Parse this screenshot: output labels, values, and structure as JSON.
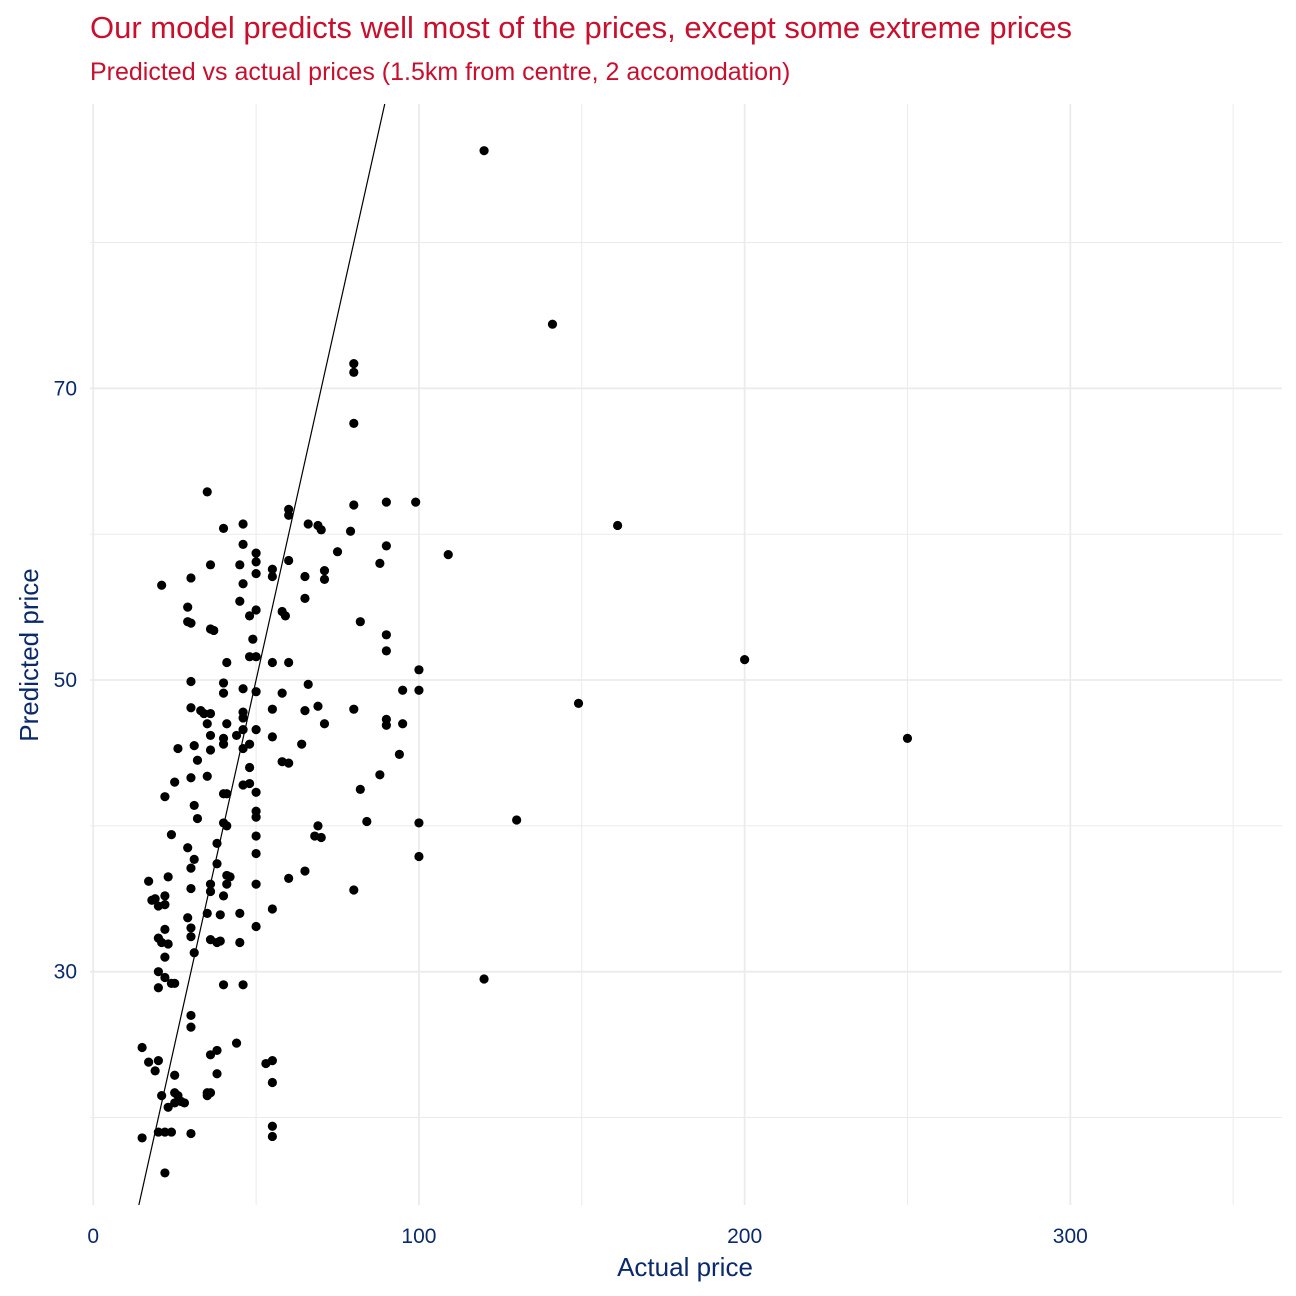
{
  "chart_data": {
    "type": "scatter",
    "title": "Our model predicts well most of the prices, except some extreme prices",
    "subtitle": "Predicted vs actual prices (1.5km from centre, 2 accomodation)",
    "xlabel": "Actual price",
    "ylabel": "Predicted price",
    "xlim": [
      -1,
      365
    ],
    "ylim": [
      14,
      89.5
    ],
    "xticks": [
      0,
      100,
      200,
      300
    ],
    "yticks": [
      30,
      50,
      70
    ],
    "x_minor": [
      50,
      150,
      250,
      350
    ],
    "y_minor": [
      20,
      40,
      60,
      80
    ],
    "grid": true,
    "reference_line": {
      "slope": 1,
      "intercept": 0
    },
    "colors": {
      "title": "#c8102e",
      "axis_text": "#0b2a6b",
      "points": "#000000",
      "grid": "#ebebeb"
    },
    "points": [
      [
        120,
        86.3
      ],
      [
        141,
        74.4
      ],
      [
        161,
        60.6
      ],
      [
        200,
        51.4
      ],
      [
        250,
        46.0
      ],
      [
        149,
        48.4
      ],
      [
        130,
        40.4
      ],
      [
        120,
        29.5
      ],
      [
        109,
        58.6
      ],
      [
        99,
        62.2
      ],
      [
        100,
        50.7
      ],
      [
        100,
        49.3
      ],
      [
        100,
        40.2
      ],
      [
        100,
        37.9
      ],
      [
        90,
        62.2
      ],
      [
        88,
        58.0
      ],
      [
        90,
        59.2
      ],
      [
        90,
        53.1
      ],
      [
        90,
        52.0
      ],
      [
        90,
        47.3
      ],
      [
        90,
        46.9
      ],
      [
        95,
        49.3
      ],
      [
        95,
        47.0
      ],
      [
        94,
        44.9
      ],
      [
        88,
        43.5
      ],
      [
        80,
        71.7
      ],
      [
        80,
        71.1
      ],
      [
        80,
        67.6
      ],
      [
        80,
        62.0
      ],
      [
        79,
        60.2
      ],
      [
        82,
        54.0
      ],
      [
        80,
        48.0
      ],
      [
        82,
        42.5
      ],
      [
        84,
        40.3
      ],
      [
        80,
        35.6
      ],
      [
        75,
        58.8
      ],
      [
        69,
        60.6
      ],
      [
        70,
        60.3
      ],
      [
        71,
        57.5
      ],
      [
        71,
        56.9
      ],
      [
        71,
        47.0
      ],
      [
        69,
        48.2
      ],
      [
        69,
        40.0
      ],
      [
        70,
        39.2
      ],
      [
        68,
        39.3
      ],
      [
        66,
        60.7
      ],
      [
        65,
        57.1
      ],
      [
        65,
        55.6
      ],
      [
        66,
        49.7
      ],
      [
        65,
        47.9
      ],
      [
        64,
        45.6
      ],
      [
        65,
        36.9
      ],
      [
        60,
        61.7
      ],
      [
        60,
        61.3
      ],
      [
        60,
        58.2
      ],
      [
        58,
        54.7
      ],
      [
        59,
        54.4
      ],
      [
        60,
        51.2
      ],
      [
        58,
        49.1
      ],
      [
        58,
        44.4
      ],
      [
        60,
        44.3
      ],
      [
        60,
        36.4
      ],
      [
        55,
        57.6
      ],
      [
        55,
        57.1
      ],
      [
        55,
        51.2
      ],
      [
        55,
        48.0
      ],
      [
        55,
        46.1
      ],
      [
        55,
        34.3
      ],
      [
        55,
        23.9
      ],
      [
        53,
        23.7
      ],
      [
        55,
        22.4
      ],
      [
        55,
        19.4
      ],
      [
        55,
        18.7
      ],
      [
        50,
        58.7
      ],
      [
        50,
        58.1
      ],
      [
        50,
        57.3
      ],
      [
        50,
        54.8
      ],
      [
        50,
        51.6
      ],
      [
        49,
        52.8
      ],
      [
        48,
        51.6
      ],
      [
        48,
        54.4
      ],
      [
        50,
        49.2
      ],
      [
        50,
        46.6
      ],
      [
        48,
        45.6
      ],
      [
        48,
        44.0
      ],
      [
        48,
        42.9
      ],
      [
        50,
        42.3
      ],
      [
        50,
        41.0
      ],
      [
        50,
        40.6
      ],
      [
        50,
        39.3
      ],
      [
        50,
        38.1
      ],
      [
        50,
        36.0
      ],
      [
        50,
        33.1
      ],
      [
        46,
        60.7
      ],
      [
        46,
        59.3
      ],
      [
        45,
        57.9
      ],
      [
        46,
        56.6
      ],
      [
        45,
        55.4
      ],
      [
        46,
        49.4
      ],
      [
        46,
        47.4
      ],
      [
        46,
        47.8
      ],
      [
        46,
        46.6
      ],
      [
        44,
        46.2
      ],
      [
        46,
        45.3
      ],
      [
        46,
        42.8
      ],
      [
        45,
        34.0
      ],
      [
        45,
        32.0
      ],
      [
        44,
        25.1
      ],
      [
        46,
        29.1
      ],
      [
        40,
        60.4
      ],
      [
        41,
        51.2
      ],
      [
        40,
        49.8
      ],
      [
        40,
        49.1
      ],
      [
        41,
        47.0
      ],
      [
        40,
        46.0
      ],
      [
        40,
        45.6
      ],
      [
        41,
        42.2
      ],
      [
        40,
        42.2
      ],
      [
        40,
        40.2
      ],
      [
        41,
        40.0
      ],
      [
        41,
        36.6
      ],
      [
        42,
        36.5
      ],
      [
        41,
        36.0
      ],
      [
        40,
        35.2
      ],
      [
        39,
        33.9
      ],
      [
        39,
        32.1
      ],
      [
        40,
        29.1
      ],
      [
        38,
        24.6
      ],
      [
        38,
        23.0
      ],
      [
        35,
        62.9
      ],
      [
        36,
        57.9
      ],
      [
        36,
        53.5
      ],
      [
        37,
        53.4
      ],
      [
        34,
        47.7
      ],
      [
        36,
        47.7
      ],
      [
        35,
        47.0
      ],
      [
        36,
        46.2
      ],
      [
        36,
        45.2
      ],
      [
        35,
        43.4
      ],
      [
        38,
        38.8
      ],
      [
        38,
        37.4
      ],
      [
        36,
        36.0
      ],
      [
        36,
        35.5
      ],
      [
        35,
        34.0
      ],
      [
        36,
        32.2
      ],
      [
        38,
        32.0
      ],
      [
        36,
        24.3
      ],
      [
        35,
        21.7
      ],
      [
        35,
        21.5
      ],
      [
        36,
        21.7
      ],
      [
        30,
        57.0
      ],
      [
        29,
        55.0
      ],
      [
        30,
        53.9
      ],
      [
        29,
        54.0
      ],
      [
        30,
        49.9
      ],
      [
        30,
        48.1
      ],
      [
        33,
        47.9
      ],
      [
        31,
        45.5
      ],
      [
        32,
        44.5
      ],
      [
        30,
        43.3
      ],
      [
        31,
        41.4
      ],
      [
        32,
        40.5
      ],
      [
        29,
        38.5
      ],
      [
        31,
        37.7
      ],
      [
        30,
        37.1
      ],
      [
        30,
        35.7
      ],
      [
        29,
        33.7
      ],
      [
        30,
        33.0
      ],
      [
        30,
        32.4
      ],
      [
        31,
        31.3
      ],
      [
        30,
        27.0
      ],
      [
        30,
        26.2
      ],
      [
        30,
        18.9
      ],
      [
        26,
        45.3
      ],
      [
        25,
        43.0
      ],
      [
        24,
        39.4
      ],
      [
        23,
        36.5
      ],
      [
        22,
        35.2
      ],
      [
        22,
        34.6
      ],
      [
        20,
        34.5
      ],
      [
        22,
        32.9
      ],
      [
        20,
        32.3
      ],
      [
        21,
        32.0
      ],
      [
        23,
        31.9
      ],
      [
        22,
        31.0
      ],
      [
        20,
        30.0
      ],
      [
        22,
        29.6
      ],
      [
        24,
        29.2
      ],
      [
        25,
        29.2
      ],
      [
        20,
        28.9
      ],
      [
        21,
        56.5
      ],
      [
        22,
        42.0
      ],
      [
        17,
        36.2
      ],
      [
        18,
        34.9
      ],
      [
        19,
        35.0
      ],
      [
        15,
        24.8
      ],
      [
        17,
        23.8
      ],
      [
        19,
        23.2
      ],
      [
        20,
        23.9
      ],
      [
        21,
        21.5
      ],
      [
        23,
        20.7
      ],
      [
        25,
        22.9
      ],
      [
        25,
        21.0
      ],
      [
        25,
        21.7
      ],
      [
        26,
        21.5
      ],
      [
        27,
        21.1
      ],
      [
        28,
        21.0
      ],
      [
        22,
        19.0
      ],
      [
        20,
        19.0
      ],
      [
        22,
        16.2
      ],
      [
        15,
        18.6
      ],
      [
        24,
        19.0
      ]
    ]
  }
}
